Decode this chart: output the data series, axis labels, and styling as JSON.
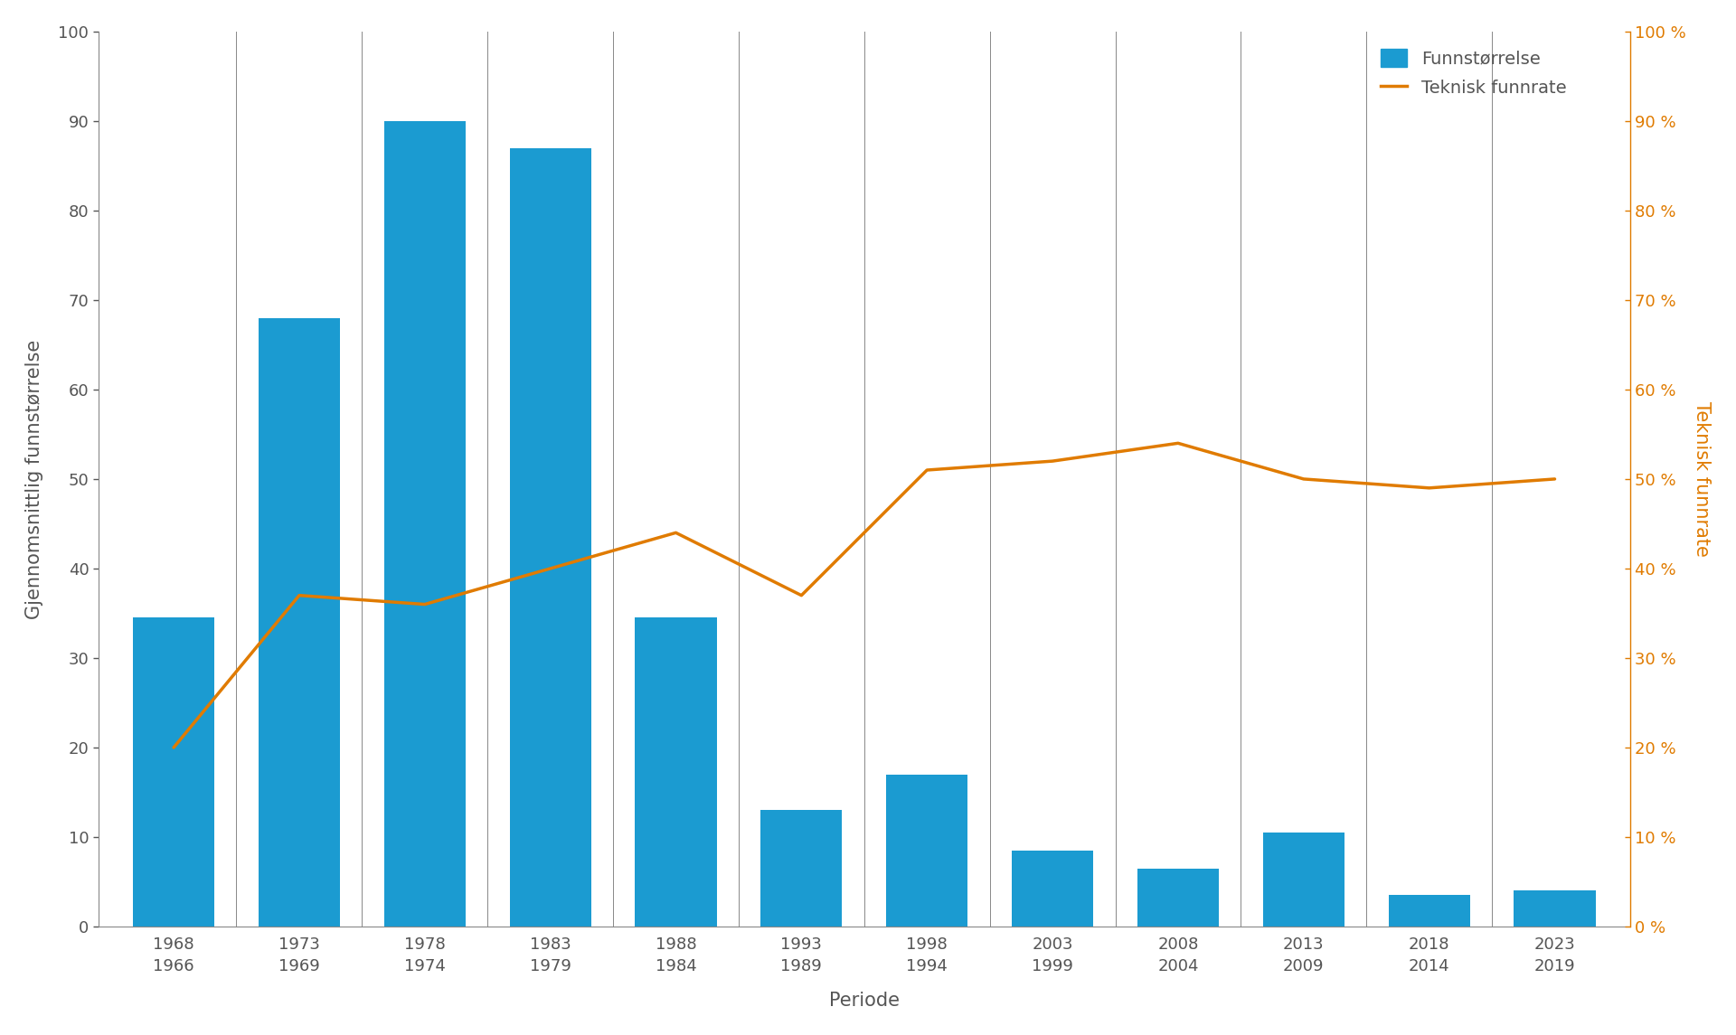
{
  "categories": [
    "1968\n1966",
    "1973\n1969",
    "1978\n1974",
    "1983\n1979",
    "1988\n1984",
    "1993\n1989",
    "1998\n1994",
    "2003\n1999",
    "2008\n2004",
    "2013\n2009",
    "2018\n2014",
    "2023\n2019"
  ],
  "bar_values": [
    34.5,
    68,
    90,
    87,
    34.5,
    13,
    17,
    8.5,
    6.5,
    10.5,
    3.5,
    4.0
  ],
  "line_values": [
    20,
    37,
    36,
    40,
    44,
    37,
    51,
    52,
    54,
    50,
    49,
    50
  ],
  "bar_color": "#1B9BD1",
  "line_color": "#E07B00",
  "ylabel_left": "Gjennomsnittlig funnstørrelse",
  "ylabel_right": "Teknisk funnrate",
  "xlabel": "Periode",
  "ylim_left": [
    0,
    100
  ],
  "ylim_right": [
    0,
    100
  ],
  "legend_bar": "Funnstørrelse",
  "legend_line": "Teknisk funnrate",
  "background_color": "#FFFFFF",
  "spine_color": "#888888",
  "tick_color": "#555555",
  "label_fontsize": 15,
  "tick_fontsize": 13,
  "legend_fontsize": 14
}
